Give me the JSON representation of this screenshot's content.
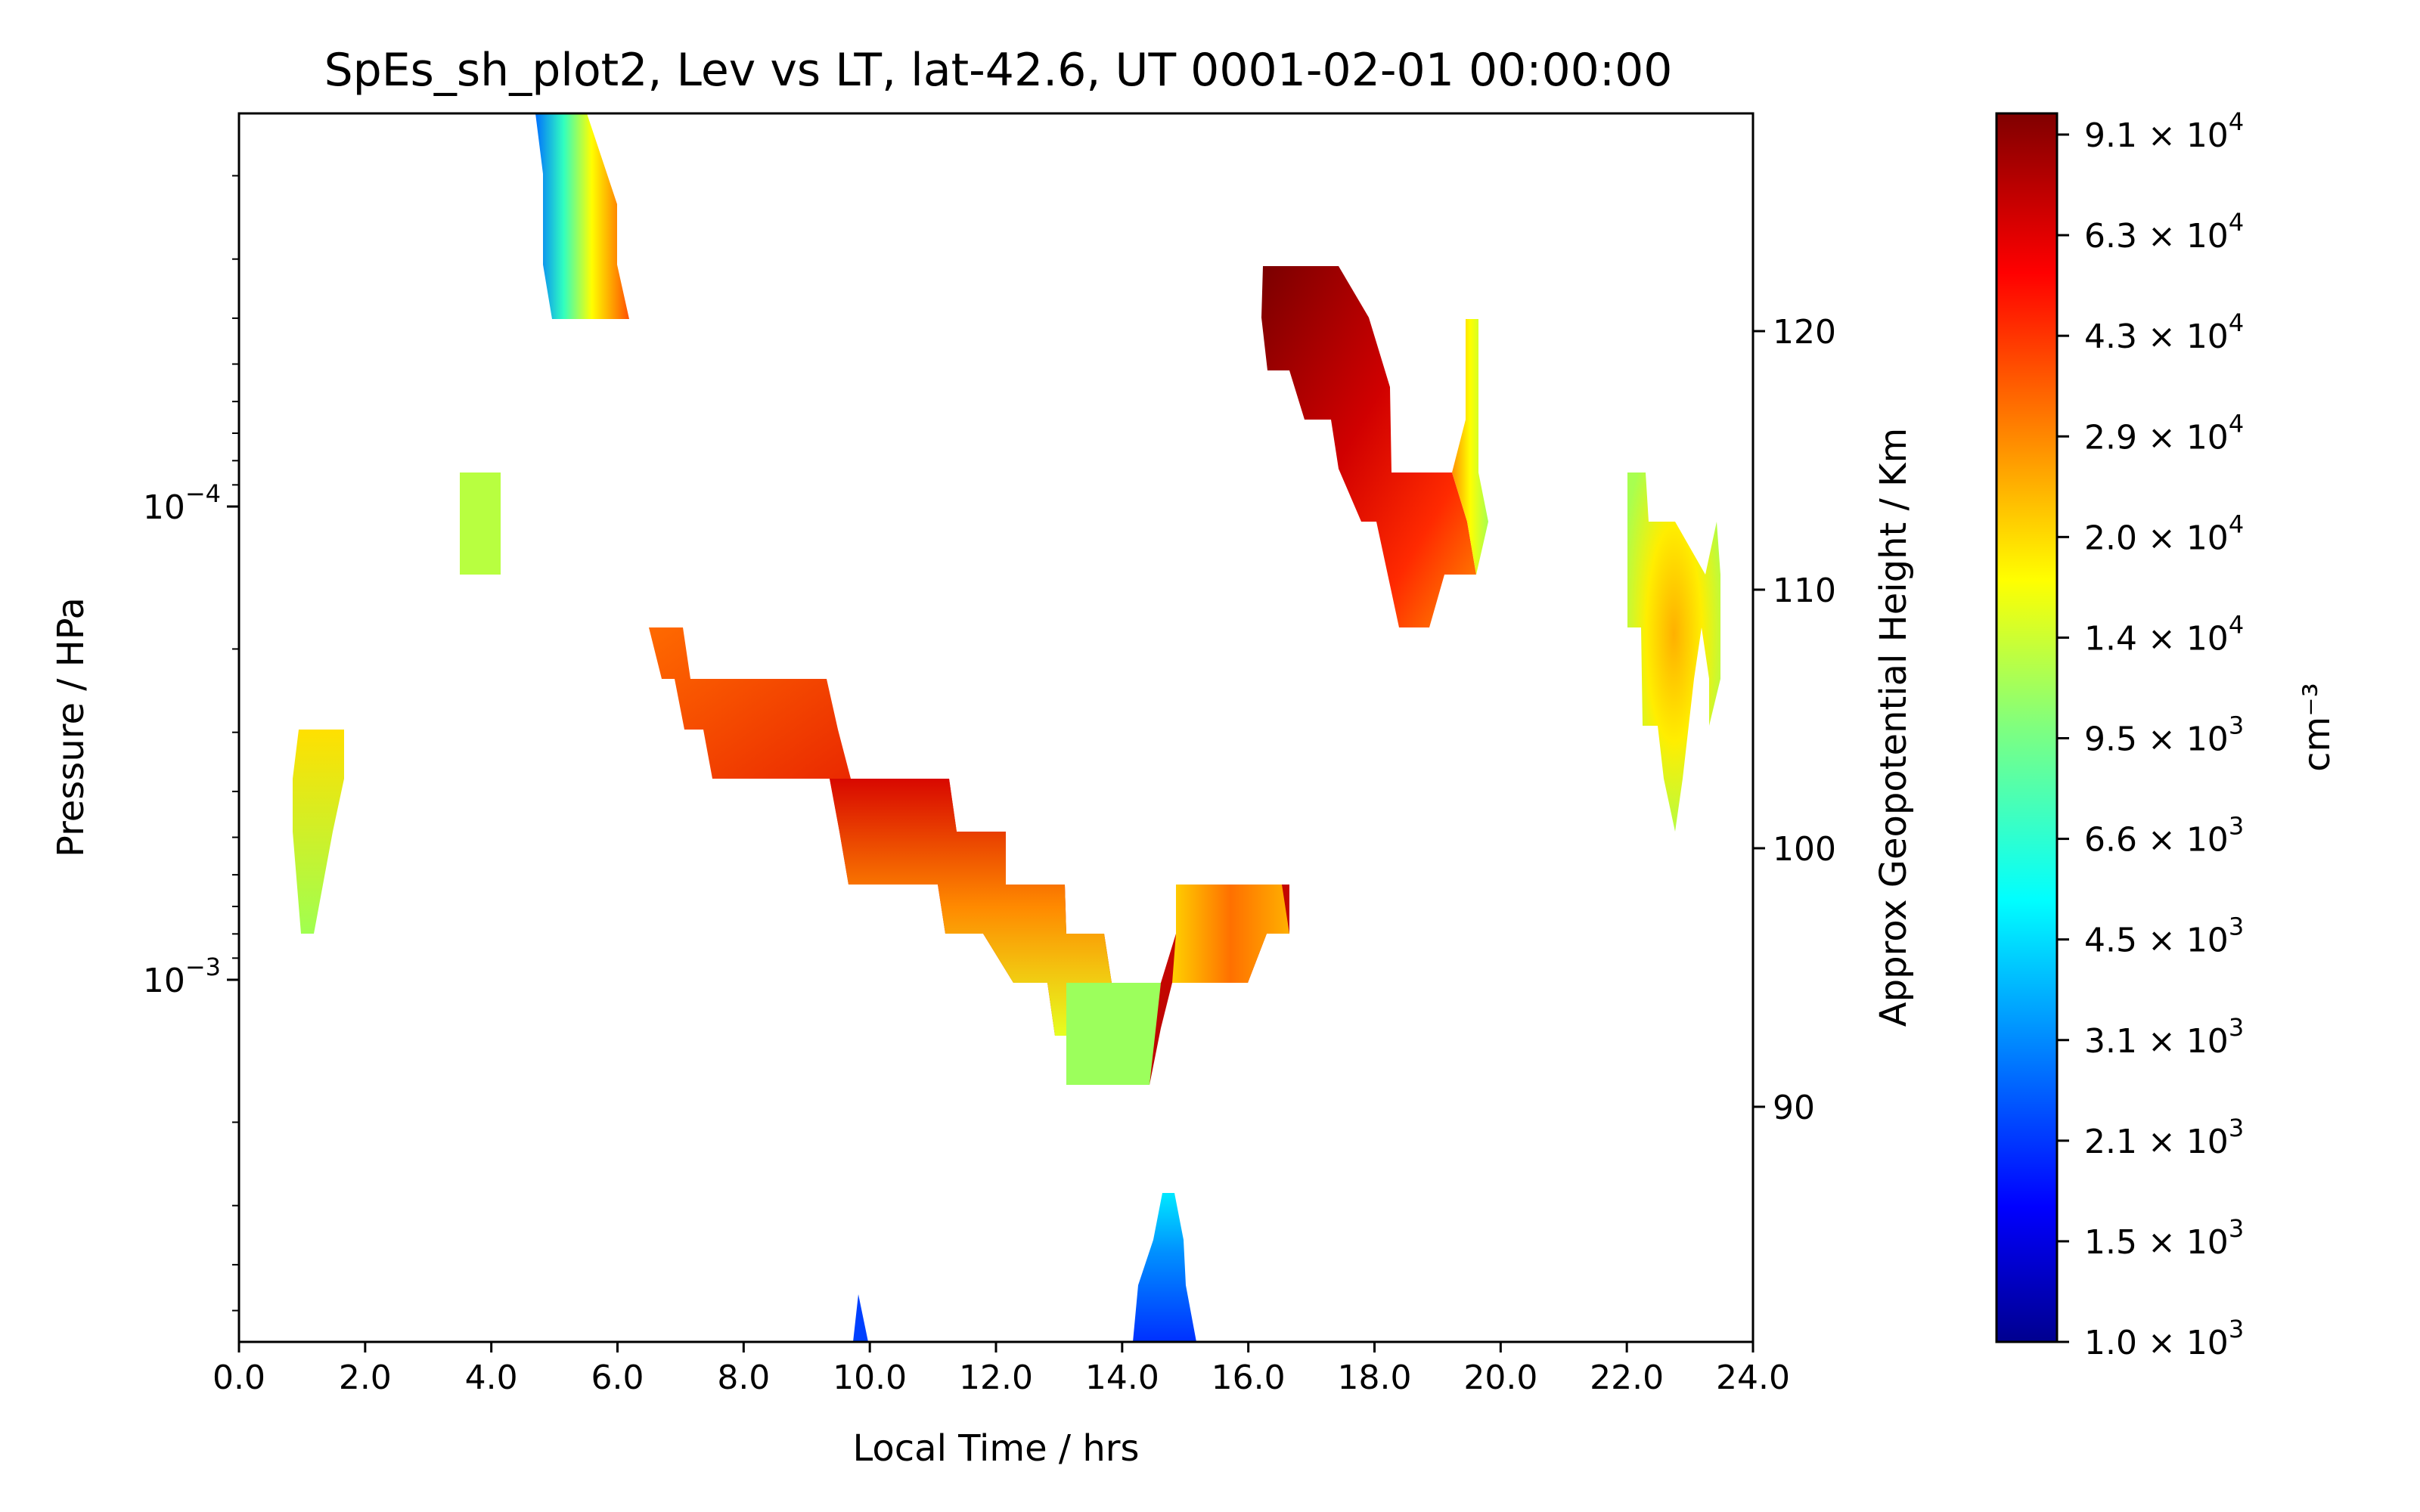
{
  "chart_data": {
    "type": "contour",
    "title": "SpEs_sh_plot2, Lev vs LT, lat-42.6, UT 0001-02-01 00:00:00",
    "xlabel": "Local Time / hrs",
    "ylabel": "Pressure / HPa",
    "y2label": "Approx Geopotential Height / Km",
    "colorbar_label": "cm⁻³",
    "x_ticks": [
      "0.0",
      "2.0",
      "4.0",
      "6.0",
      "8.0",
      "10.0",
      "12.0",
      "14.0",
      "16.0",
      "18.0",
      "20.0",
      "22.0",
      "24.0"
    ],
    "xlim": [
      0,
      24
    ],
    "ylim_log10": [
      -3.77,
      -3.51
    ],
    "y_ticks": [
      {
        "base": "10",
        "exp": "−4",
        "log10": -4
      },
      {
        "base": "10",
        "exp": "−3",
        "log10": -3
      }
    ],
    "y2_ticks": [
      {
        "label": "120",
        "km": 120
      },
      {
        "label": "110",
        "km": 110
      },
      {
        "label": "100",
        "km": 100
      },
      {
        "label": "90",
        "km": 90
      }
    ],
    "colorbar_ticks": [
      {
        "mant": "9.1",
        "exp": "4"
      },
      {
        "mant": "6.3",
        "exp": "4"
      },
      {
        "mant": "4.3",
        "exp": "4"
      },
      {
        "mant": "2.9",
        "exp": "4"
      },
      {
        "mant": "2.0",
        "exp": "4"
      },
      {
        "mant": "1.4",
        "exp": "4"
      },
      {
        "mant": "9.5",
        "exp": "3"
      },
      {
        "mant": "6.6",
        "exp": "3"
      },
      {
        "mant": "4.5",
        "exp": "3"
      },
      {
        "mant": "3.1",
        "exp": "3"
      },
      {
        "mant": "2.1",
        "exp": "3"
      },
      {
        "mant": "1.5",
        "exp": "3"
      },
      {
        "mant": "1.0",
        "exp": "3"
      }
    ],
    "colormap": "jet",
    "colorbar_range_cm3": [
      1000,
      91000
    ]
  }
}
